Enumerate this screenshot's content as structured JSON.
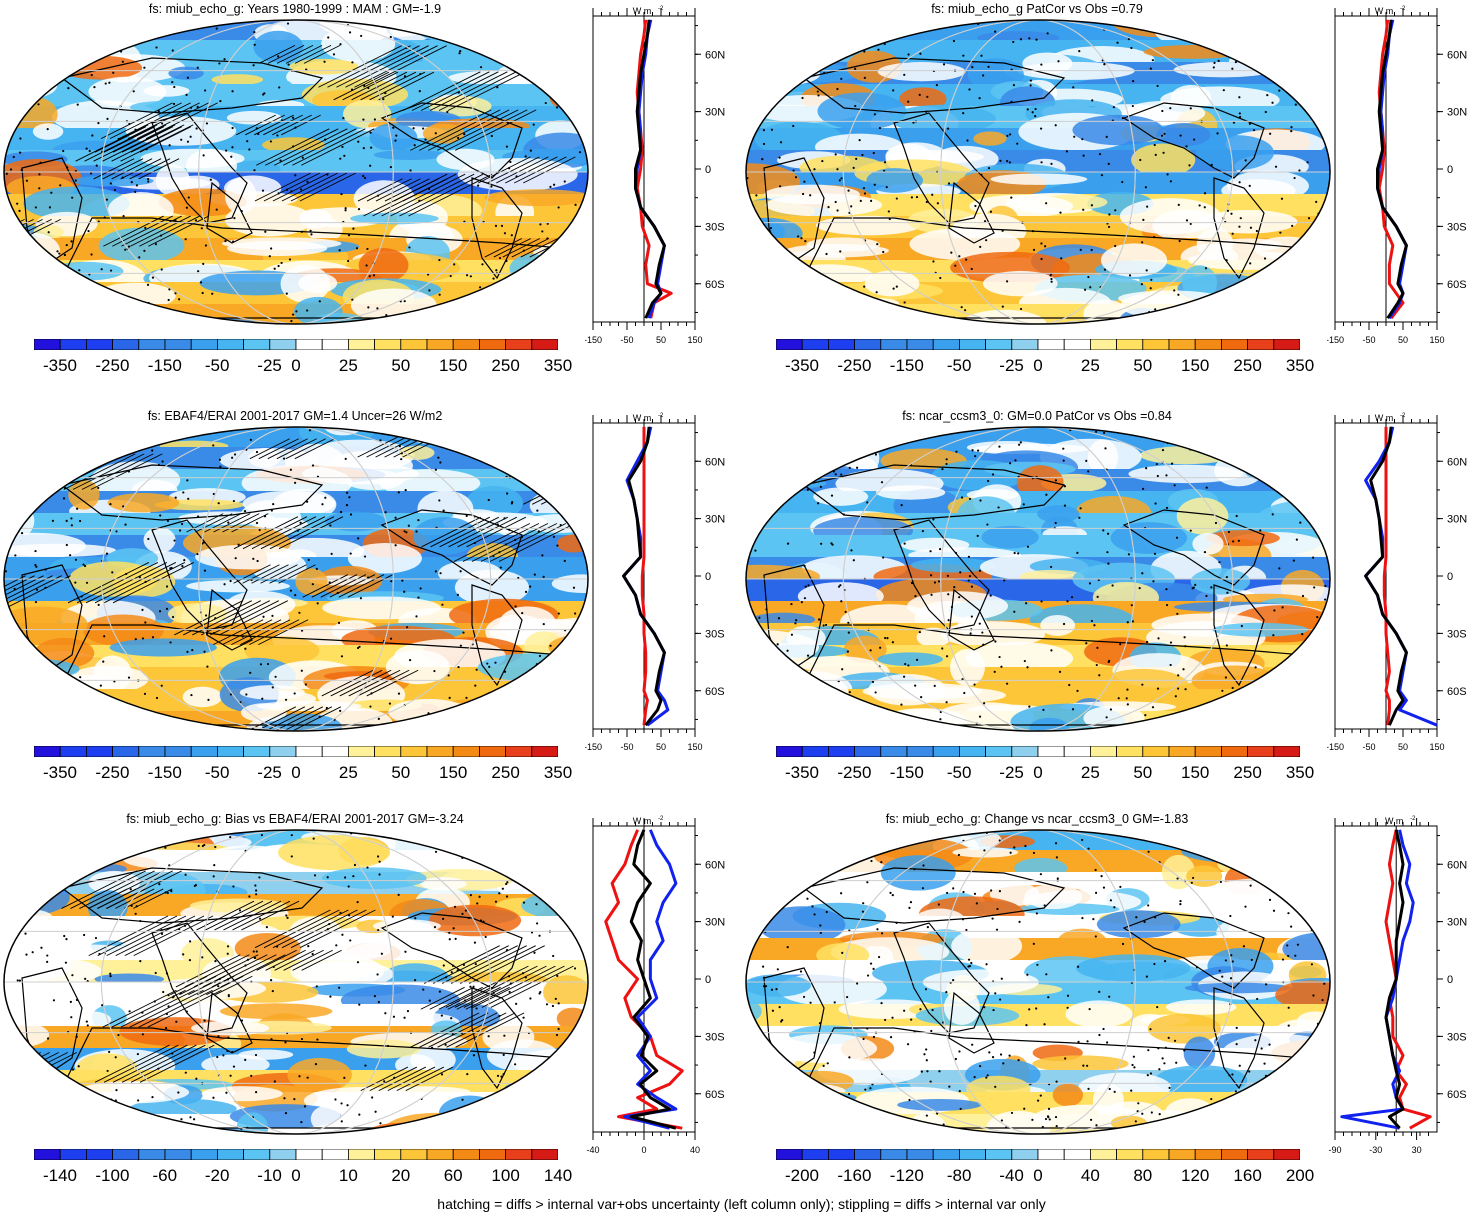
{
  "footer": "hatching = diffs > internal var+obs uncertainty (left column only); stippling = diffs > internal var only",
  "profile": {
    "unit": "W m",
    "unit_sup": "-2",
    "lat_ticks": [
      "60N",
      "30N",
      "0",
      "30S",
      "60S"
    ]
  },
  "colors": {
    "palette": [
      "#2211dd",
      "#1d3ff0",
      "#2a66e8",
      "#3a8ae8",
      "#3aa0ee",
      "#45b4f0",
      "#5cc4f2",
      "#8fd0ee",
      "#ffffff",
      "#ffffff",
      "#fff09a",
      "#ffe060",
      "#fdc638",
      "#f9a826",
      "#f48a16",
      "#f06a10",
      "#e8401a",
      "#d61a16"
    ],
    "profile_red": "#ee1111",
    "profile_blue": "#1122ee",
    "profile_black": "#000000"
  },
  "chart_data": [
    {
      "type": "heatmap",
      "title": "fs: miub_echo_g: Years 1980-1999 : MAM : GM=-1.9",
      "colorbar_labels": [
        "-350",
        "-250",
        "-150",
        "-50",
        "-25",
        "0",
        "25",
        "50",
        "150",
        "250",
        "350"
      ],
      "profile_xticks": [
        "-150",
        "-50",
        "50",
        "150"
      ],
      "profile_xlim": [
        -150,
        150
      ],
      "hatching": true,
      "series": [
        {
          "color": "red",
          "lat": [
            -78,
            -70,
            -65,
            -60,
            -50,
            -40,
            -30,
            -20,
            -10,
            0,
            10,
            20,
            30,
            40,
            50,
            60,
            70,
            78
          ],
          "values": [
            20,
            30,
            80,
            10,
            5,
            15,
            -5,
            -10,
            -20,
            -10,
            -5,
            -10,
            -15,
            -20,
            -15,
            -10,
            0,
            5
          ]
        },
        {
          "color": "blue",
          "lat": [
            -78,
            -70,
            -65,
            -60,
            -50,
            -40,
            -30,
            -20,
            -10,
            0,
            10,
            20,
            30,
            40,
            50,
            60,
            70,
            78
          ],
          "values": [
            15,
            30,
            50,
            40,
            50,
            60,
            30,
            -10,
            -25,
            -20,
            -10,
            -10,
            -15,
            -10,
            -5,
            5,
            10,
            20
          ]
        },
        {
          "color": "black",
          "lat": [
            -78,
            -70,
            -65,
            -60,
            -50,
            -40,
            -30,
            -20,
            -10,
            0,
            10,
            20,
            30,
            40,
            50,
            60,
            70,
            78
          ],
          "values": [
            5,
            25,
            50,
            35,
            45,
            60,
            30,
            -10,
            -25,
            -25,
            -10,
            -15,
            -20,
            -15,
            -10,
            0,
            10,
            15
          ]
        }
      ]
    },
    {
      "type": "heatmap",
      "title": "fs: miub_echo_g PatCor vs Obs =0.79",
      "colorbar_labels": [
        "-350",
        "-250",
        "-150",
        "-50",
        "-25",
        "0",
        "25",
        "50",
        "150",
        "250",
        "350"
      ],
      "profile_xticks": [
        "-150",
        "-50",
        "50",
        "150"
      ],
      "profile_xlim": [
        -150,
        150
      ],
      "hatching": false,
      "series": [
        {
          "color": "red",
          "lat": [
            -78,
            -70,
            -65,
            -60,
            -50,
            -40,
            -30,
            -20,
            -10,
            0,
            10,
            20,
            30,
            40,
            50,
            60,
            70,
            78
          ],
          "values": [
            15,
            50,
            30,
            10,
            10,
            20,
            -5,
            -10,
            -20,
            -10,
            -5,
            -10,
            -15,
            -20,
            -15,
            -10,
            0,
            5
          ]
        },
        {
          "color": "blue",
          "lat": [
            -78,
            -70,
            -65,
            -60,
            -50,
            -40,
            -30,
            -20,
            -10,
            0,
            10,
            20,
            30,
            40,
            50,
            60,
            70,
            78
          ],
          "values": [
            10,
            40,
            50,
            40,
            50,
            60,
            30,
            -10,
            -25,
            -20,
            -10,
            -10,
            -15,
            -10,
            -5,
            5,
            10,
            20
          ]
        },
        {
          "color": "black",
          "lat": [
            -78,
            -70,
            -65,
            -60,
            -50,
            -40,
            -30,
            -20,
            -10,
            0,
            10,
            20,
            30,
            40,
            50,
            60,
            70,
            78
          ],
          "values": [
            5,
            35,
            50,
            35,
            45,
            60,
            30,
            -10,
            -25,
            -25,
            -10,
            -15,
            -20,
            -15,
            -10,
            0,
            10,
            15
          ]
        }
      ]
    },
    {
      "type": "heatmap",
      "title": "fs: EBAF4/ERAI 2001-2017 GM=1.4 Uncer=26 W/m2",
      "colorbar_labels": [
        "-350",
        "-250",
        "-150",
        "-50",
        "-25",
        "0",
        "25",
        "50",
        "150",
        "250",
        "350"
      ],
      "profile_xticks": [
        "-150",
        "-50",
        "50",
        "150"
      ],
      "profile_xlim": [
        -150,
        150
      ],
      "hatching": true,
      "series": [
        {
          "color": "red",
          "lat": [
            -78,
            -70,
            -65,
            -60,
            -50,
            -40,
            -30,
            -20,
            -10,
            0,
            10,
            20,
            30,
            40,
            50,
            60,
            70,
            78
          ],
          "values": [
            0,
            5,
            10,
            0,
            5,
            5,
            0,
            0,
            -5,
            -5,
            0,
            0,
            0,
            0,
            0,
            0,
            0,
            0
          ]
        },
        {
          "color": "blue",
          "lat": [
            -78,
            -70,
            -65,
            -60,
            -50,
            -40,
            -30,
            -20,
            -10,
            0,
            10,
            20,
            30,
            40,
            50,
            60,
            70,
            78
          ],
          "values": [
            10,
            70,
            60,
            40,
            50,
            60,
            30,
            -10,
            -25,
            -60,
            -10,
            -10,
            -20,
            -30,
            -50,
            -20,
            10,
            20
          ]
        },
        {
          "color": "black",
          "lat": [
            -78,
            -70,
            -65,
            -60,
            -50,
            -40,
            -30,
            -20,
            -10,
            0,
            10,
            20,
            30,
            40,
            50,
            60,
            70,
            78
          ],
          "values": [
            5,
            40,
            50,
            35,
            45,
            60,
            30,
            -10,
            -25,
            -60,
            -10,
            -15,
            -20,
            -30,
            -45,
            -10,
            10,
            15
          ]
        }
      ]
    },
    {
      "type": "heatmap",
      "title": "fs: ncar_ccsm3_0: GM=0.0 PatCor vs Obs =0.84",
      "colorbar_labels": [
        "-350",
        "-250",
        "-150",
        "-50",
        "-25",
        "0",
        "25",
        "50",
        "150",
        "250",
        "350"
      ],
      "profile_xticks": [
        "-150",
        "-50",
        "50",
        "150"
      ],
      "profile_xlim": [
        -150,
        150
      ],
      "hatching": false,
      "series": [
        {
          "color": "red",
          "lat": [
            -78,
            -70,
            -65,
            -60,
            -50,
            -40,
            -30,
            -20,
            -10,
            0,
            10,
            20,
            30,
            40,
            50,
            60,
            70,
            78
          ],
          "values": [
            5,
            10,
            10,
            0,
            10,
            5,
            0,
            0,
            -5,
            -5,
            0,
            0,
            0,
            0,
            0,
            0,
            0,
            0
          ]
        },
        {
          "color": "blue",
          "lat": [
            -78,
            -70,
            -65,
            -60,
            -50,
            -40,
            -30,
            -20,
            -10,
            0,
            10,
            20,
            30,
            40,
            50,
            60,
            70,
            78
          ],
          "values": [
            150,
            40,
            60,
            40,
            50,
            60,
            30,
            -10,
            -25,
            -60,
            -10,
            -10,
            -20,
            -30,
            -60,
            -20,
            10,
            20
          ]
        },
        {
          "color": "black",
          "lat": [
            -78,
            -70,
            -65,
            -60,
            -50,
            -40,
            -30,
            -20,
            -10,
            0,
            10,
            20,
            30,
            40,
            50,
            60,
            70,
            78
          ],
          "values": [
            10,
            30,
            50,
            35,
            45,
            60,
            30,
            -10,
            -25,
            -60,
            -10,
            -15,
            -20,
            -30,
            -45,
            -10,
            10,
            15
          ]
        }
      ]
    },
    {
      "type": "heatmap",
      "title": "fs: miub_echo_g: Bias vs EBAF4/ERAI 2001-2017 GM=-3.24",
      "colorbar_labels": [
        "-140",
        "-100",
        "-60",
        "-20",
        "-10",
        "0",
        "10",
        "20",
        "60",
        "100",
        "140"
      ],
      "profile_xticks": [
        "-40",
        "0",
        "40"
      ],
      "profile_xlim": [
        -40,
        40
      ],
      "hatching": true,
      "series": [
        {
          "color": "red",
          "lat": [
            -78,
            -72,
            -68,
            -62,
            -55,
            -48,
            -40,
            -30,
            -20,
            -10,
            0,
            10,
            20,
            30,
            40,
            50,
            60,
            70,
            78
          ],
          "values": [
            30,
            -20,
            10,
            -5,
            20,
            30,
            10,
            5,
            -10,
            -15,
            -5,
            -20,
            -25,
            -30,
            -20,
            -25,
            -15,
            -10,
            -5
          ]
        },
        {
          "color": "blue",
          "lat": [
            -78,
            -72,
            -68,
            -62,
            -55,
            -48,
            -40,
            -30,
            -20,
            -10,
            0,
            10,
            20,
            30,
            40,
            50,
            60,
            70,
            78
          ],
          "values": [
            20,
            -15,
            25,
            10,
            -5,
            5,
            -5,
            5,
            -5,
            10,
            5,
            5,
            15,
            10,
            15,
            25,
            20,
            10,
            5
          ]
        },
        {
          "color": "black",
          "lat": [
            -78,
            -72,
            -68,
            -62,
            -55,
            -48,
            -40,
            -30,
            -20,
            -10,
            0,
            10,
            20,
            30,
            40,
            50,
            60,
            70,
            78
          ],
          "values": [
            25,
            -10,
            20,
            5,
            -3,
            10,
            -2,
            3,
            -8,
            5,
            0,
            -5,
            -2,
            -10,
            -5,
            5,
            -8,
            -5,
            0
          ]
        }
      ]
    },
    {
      "type": "heatmap",
      "title": "fs: miub_echo_g: Change vs ncar_ccsm3_0 GM=-1.83",
      "colorbar_labels": [
        "-200",
        "-160",
        "-120",
        "-80",
        "-40",
        "0",
        "40",
        "80",
        "120",
        "160",
        "200"
      ],
      "profile_xticks": [
        "-90",
        "-30",
        "30"
      ],
      "profile_xlim": [
        -90,
        60
      ],
      "hatching": false,
      "series": [
        {
          "color": "red",
          "lat": [
            -78,
            -72,
            -68,
            -62,
            -55,
            -48,
            -40,
            -30,
            -20,
            -10,
            0,
            10,
            20,
            30,
            40,
            50,
            60,
            70,
            78
          ],
          "values": [
            20,
            50,
            10,
            5,
            15,
            0,
            10,
            -5,
            -5,
            -10,
            0,
            -5,
            -10,
            -15,
            -10,
            -5,
            -10,
            -5,
            0
          ]
        },
        {
          "color": "blue",
          "lat": [
            -78,
            -72,
            -68,
            -62,
            -55,
            -48,
            -40,
            -30,
            -20,
            -10,
            0,
            10,
            20,
            30,
            40,
            50,
            60,
            70,
            78
          ],
          "values": [
            5,
            -80,
            10,
            0,
            -5,
            5,
            -5,
            -10,
            -15,
            -5,
            0,
            5,
            10,
            20,
            25,
            15,
            20,
            10,
            5
          ]
        },
        {
          "color": "black",
          "lat": [
            -78,
            -72,
            -68,
            -62,
            -55,
            -48,
            -40,
            -30,
            -20,
            -10,
            0,
            10,
            20,
            30,
            40,
            50,
            60,
            70,
            78
          ],
          "values": [
            5,
            -10,
            10,
            0,
            5,
            0,
            -5,
            -10,
            -15,
            -10,
            0,
            0,
            0,
            5,
            10,
            5,
            10,
            5,
            0
          ]
        }
      ]
    }
  ]
}
